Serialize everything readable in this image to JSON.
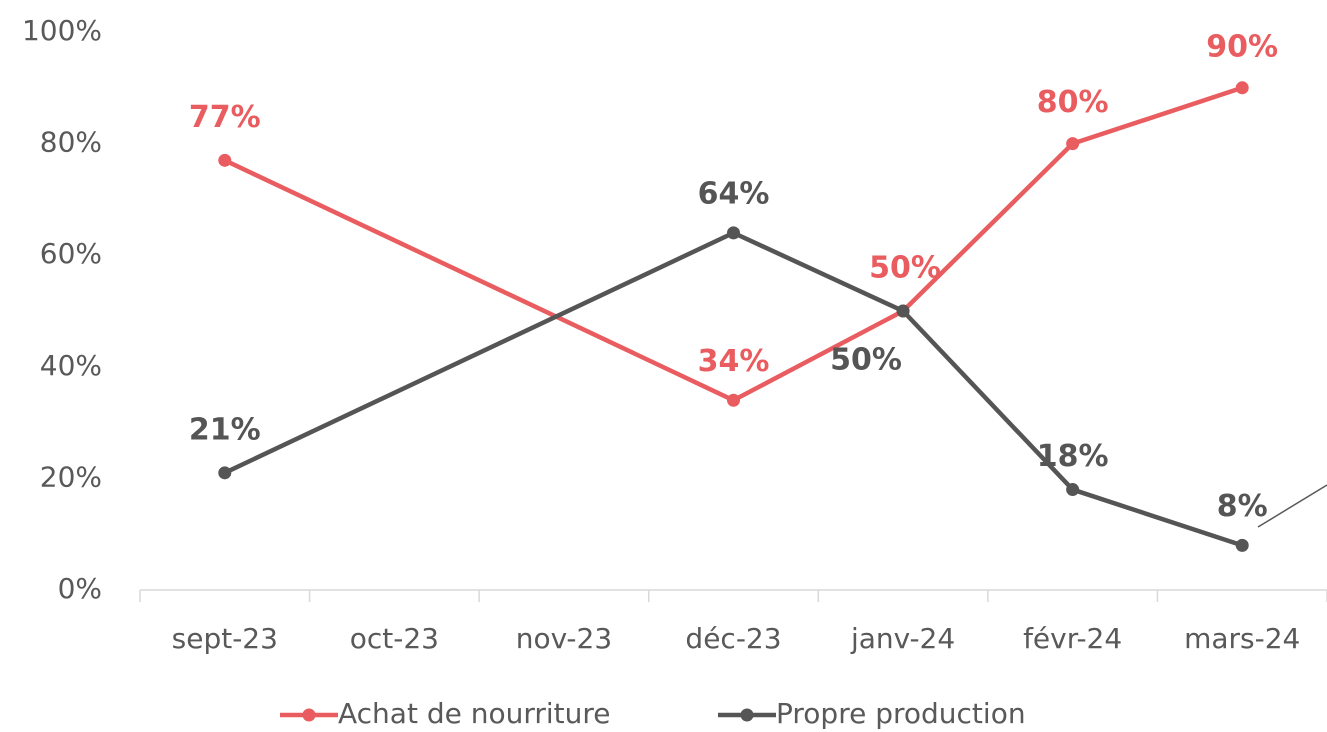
{
  "chart_data": {
    "type": "line",
    "categories": [
      "sept-23",
      "oct-23",
      "nov-23",
      "déc-23",
      "janv-24",
      "févr-24",
      "mars-24"
    ],
    "span_gaps": true,
    "series": [
      {
        "name": "Achat de nourriture",
        "color": "#e95c5f",
        "values": [
          77,
          null,
          null,
          34,
          50,
          80,
          90
        ],
        "value_labels": [
          "77%",
          null,
          null,
          "34%",
          "50%",
          "80%",
          "90%"
        ]
      },
      {
        "name": "Propre production",
        "color": "#555555",
        "values": [
          21,
          null,
          null,
          64,
          50,
          18,
          8
        ],
        "value_labels": [
          "21%",
          null,
          null,
          "64%",
          "50%",
          "18%",
          "8%"
        ]
      }
    ],
    "ylim": [
      0,
      100
    ],
    "yticks": [
      {
        "value": 0,
        "label": "0%"
      },
      {
        "value": 20,
        "label": "20%"
      },
      {
        "value": 40,
        "label": "40%"
      },
      {
        "value": 60,
        "label": "60%"
      },
      {
        "value": 80,
        "label": "80%"
      },
      {
        "value": 100,
        "label": "100%"
      }
    ],
    "grid": false,
    "legend": "bottom"
  }
}
